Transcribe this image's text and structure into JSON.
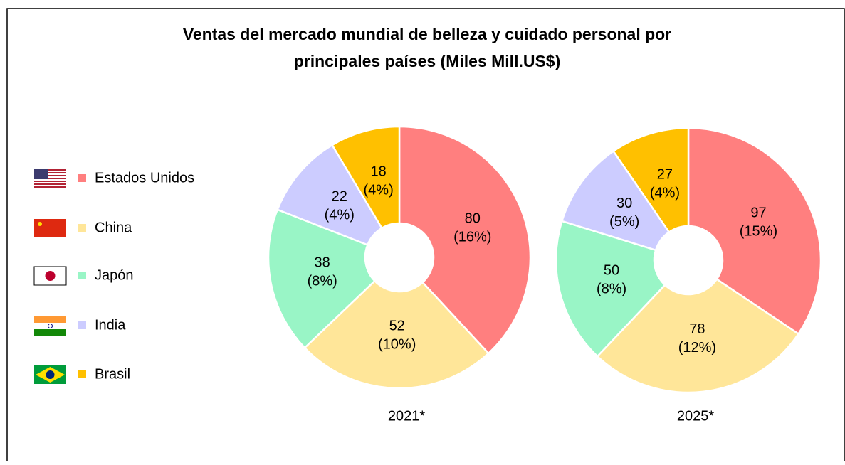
{
  "title": "Ventas del mercado mundial de belleza y cuidado personal por principales países (Miles Mill.US$)",
  "title_lines": [
    "Ventas del mercado mundial de belleza y cuidado personal por",
    "principales países (Miles Mill.US$)"
  ],
  "chart_data": [
    {
      "type": "pie",
      "donut": true,
      "title": "2021*",
      "categories": [
        "Estados Unidos",
        "China",
        "Japón",
        "India",
        "Brasil"
      ],
      "colors": [
        "#ff7f7f",
        "#ffe699",
        "#99f5c6",
        "#ccccff",
        "#ffc000"
      ],
      "values": [
        80,
        52,
        38,
        22,
        18
      ],
      "value_labels": [
        "80\n(16%)",
        "52\n(10%)",
        "38\n(8%)",
        "22\n(4%)",
        "18\n(4%)"
      ]
    },
    {
      "type": "pie",
      "donut": true,
      "title": "2025*",
      "categories": [
        "Estados Unidos",
        "China",
        "Japón",
        "India",
        "Brasil"
      ],
      "colors": [
        "#ff7f7f",
        "#ffe699",
        "#99f5c6",
        "#ccccff",
        "#ffc000"
      ],
      "values": [
        97,
        78,
        50,
        30,
        27
      ],
      "value_labels": [
        "97\n(15%)",
        "78\n(12%)",
        "50\n(8%)",
        "30\n(5%)",
        "27\n(4%)"
      ]
    }
  ]
}
